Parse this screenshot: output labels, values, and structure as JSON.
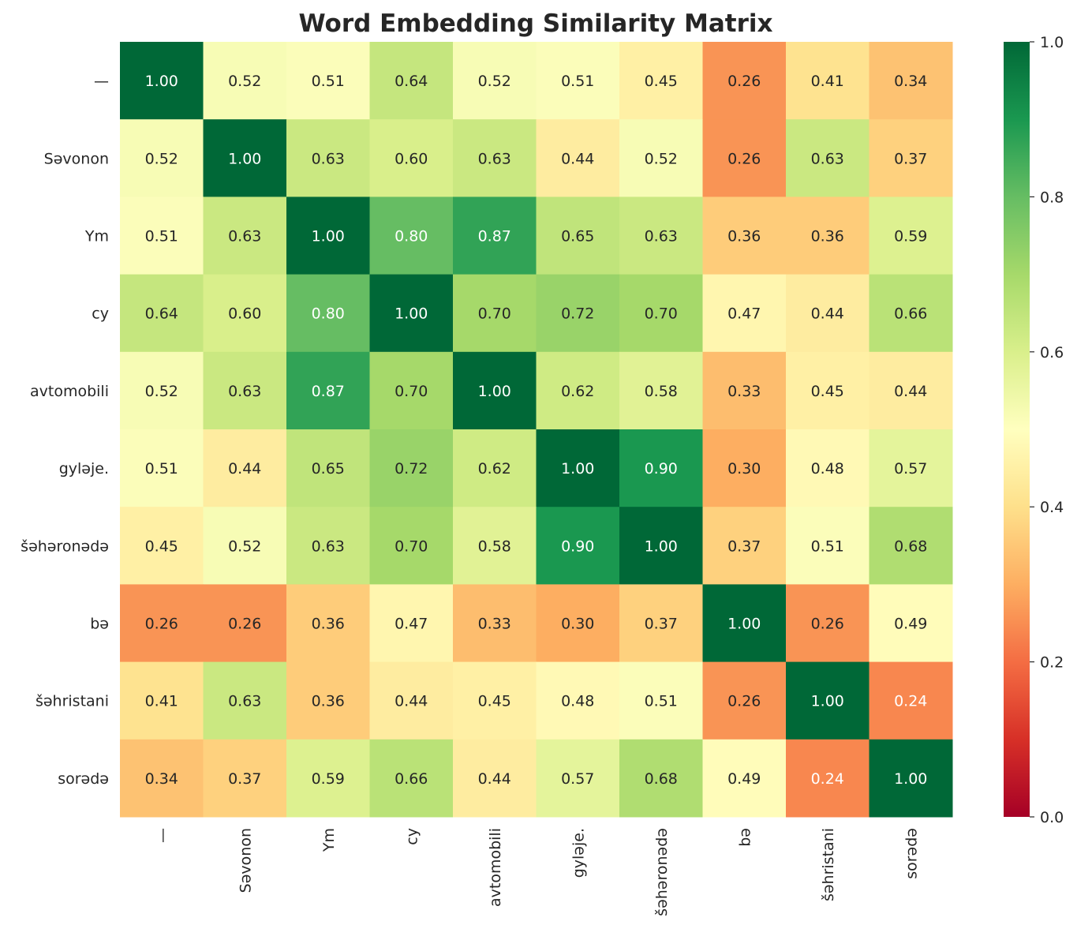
{
  "chart_data": {
    "type": "heatmap",
    "title": "Word Embedding Similarity Matrix",
    "xlabel": "",
    "ylabel": "",
    "x_categories": [
      "—",
      "Səvonon",
      "Ym",
      "cy",
      "avtomobili",
      "gyləje.",
      "šəhəronədə",
      "bə",
      "šəhristani",
      "sorədə"
    ],
    "y_categories": [
      "—",
      "Səvonon",
      "Ym",
      "cy",
      "avtomobili",
      "gyləje.",
      "šəhəronədə",
      "bə",
      "šəhristani",
      "sorədə"
    ],
    "values": [
      [
        1.0,
        0.52,
        0.51,
        0.64,
        0.52,
        0.51,
        0.45,
        0.26,
        0.41,
        0.34
      ],
      [
        0.52,
        1.0,
        0.63,
        0.6,
        0.63,
        0.44,
        0.52,
        0.26,
        0.63,
        0.37
      ],
      [
        0.51,
        0.63,
        1.0,
        0.8,
        0.87,
        0.65,
        0.63,
        0.36,
        0.36,
        0.59
      ],
      [
        0.64,
        0.6,
        0.8,
        1.0,
        0.7,
        0.72,
        0.7,
        0.47,
        0.44,
        0.66
      ],
      [
        0.52,
        0.63,
        0.87,
        0.7,
        1.0,
        0.62,
        0.58,
        0.33,
        0.45,
        0.44
      ],
      [
        0.51,
        0.44,
        0.65,
        0.72,
        0.62,
        1.0,
        0.9,
        0.3,
        0.48,
        0.57
      ],
      [
        0.45,
        0.52,
        0.63,
        0.7,
        0.58,
        0.9,
        1.0,
        0.37,
        0.51,
        0.68
      ],
      [
        0.26,
        0.26,
        0.36,
        0.47,
        0.33,
        0.3,
        0.37,
        1.0,
        0.26,
        0.49
      ],
      [
        0.41,
        0.63,
        0.36,
        0.44,
        0.45,
        0.48,
        0.51,
        0.26,
        1.0,
        0.24
      ],
      [
        0.34,
        0.37,
        0.59,
        0.66,
        0.44,
        0.57,
        0.68,
        0.49,
        0.24,
        1.0
      ]
    ],
    "value_format": "0.00",
    "colormap": "RdYlGn",
    "color_range": [
      0.0,
      1.0
    ],
    "colorbar_ticks": [
      "0.0",
      "0.2",
      "0.4",
      "0.6",
      "0.8",
      "1.0"
    ],
    "colorbar_stops": [
      "#a50026",
      "#d73027",
      "#f46d43",
      "#fdae61",
      "#fee08b",
      "#ffffbf",
      "#d9ef8b",
      "#a6d96a",
      "#66bd63",
      "#1a9850",
      "#006837"
    ],
    "grid": false,
    "legend": "colorbar-right"
  }
}
